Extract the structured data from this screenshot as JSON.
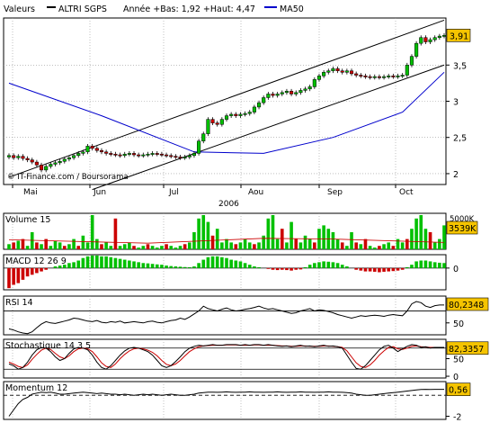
{
  "header": {
    "label": "Valeurs",
    "stock": "ALTRI SGPS",
    "range_text": "Année +Bas: 1,92 +Haut: 4,47",
    "ma_label": "MA50"
  },
  "watermark": "© IT-Finance.com / Boursorama",
  "colors": {
    "up": "#00c000",
    "down": "#cc0000",
    "ma": "#0000cc",
    "label_bg": "#f5c400",
    "stoch_signal": "#cc0000"
  },
  "chart_data": [
    {
      "id": "price",
      "type": "candlestick",
      "title": "",
      "year_label": "2006",
      "months": [
        "Mai",
        "Jun",
        "Jul",
        "Aou",
        "Sep",
        "Oct"
      ],
      "ylim": [
        1.85,
        4.15
      ],
      "yticks": [
        "2",
        "2,5",
        "3",
        "3,5"
      ],
      "last_label": "3,91",
      "close": [
        2.25,
        2.22,
        2.24,
        2.21,
        2.19,
        2.16,
        2.12,
        2.05,
        2.1,
        2.13,
        2.15,
        2.17,
        2.2,
        2.22,
        2.25,
        2.28,
        2.3,
        2.38,
        2.35,
        2.32,
        2.3,
        2.28,
        2.27,
        2.26,
        2.25,
        2.27,
        2.28,
        2.26,
        2.25,
        2.26,
        2.27,
        2.28,
        2.27,
        2.26,
        2.25,
        2.24,
        2.23,
        2.22,
        2.23,
        2.25,
        2.28,
        2.45,
        2.55,
        2.75,
        2.7,
        2.68,
        2.75,
        2.8,
        2.82,
        2.8,
        2.82,
        2.83,
        2.85,
        2.92,
        2.98,
        3.05,
        3.1,
        3.08,
        3.1,
        3.12,
        3.14,
        3.1,
        3.12,
        3.15,
        3.17,
        3.2,
        3.3,
        3.35,
        3.4,
        3.42,
        3.45,
        3.42,
        3.4,
        3.42,
        3.38,
        3.36,
        3.35,
        3.34,
        3.33,
        3.34,
        3.33,
        3.34,
        3.35,
        3.34,
        3.35,
        3.36,
        3.5,
        3.62,
        3.8,
        3.88,
        3.82,
        3.85,
        3.88,
        3.9,
        3.91
      ],
      "ma50": {
        "name": "MA50",
        "points": [
          [
            0,
            3.25
          ],
          [
            20,
            2.8
          ],
          [
            40,
            2.3
          ],
          [
            55,
            2.28
          ],
          [
            70,
            2.5
          ],
          [
            85,
            2.85
          ],
          [
            94,
            3.4
          ]
        ]
      },
      "channel_lines": [
        {
          "points": [
            [
              0,
              1.95
            ],
            [
              94,
              4.12
            ]
          ]
        },
        {
          "points": [
            [
              18,
              1.78
            ],
            [
              94,
              3.5
            ]
          ]
        }
      ]
    },
    {
      "id": "volume",
      "type": "bar",
      "title": "Volume 15",
      "axis_label": "5000K",
      "last_label": "3539K",
      "ma_points": [
        [
          0,
          0.28
        ],
        [
          30,
          0.18
        ],
        [
          55,
          0.32
        ],
        [
          70,
          0.3
        ],
        [
          94,
          0.2
        ]
      ],
      "values": [
        0.15,
        0.2,
        0.25,
        0.3,
        0.1,
        0.5,
        0.2,
        0.15,
        0.3,
        0.1,
        0.25,
        0.2,
        0.1,
        0.15,
        0.3,
        0.1,
        0.4,
        0.2,
        1,
        0.3,
        0.15,
        0.2,
        0.1,
        0.9,
        0.1,
        0.15,
        0.2,
        0.1,
        0.05,
        0.1,
        0.15,
        0.1,
        0.05,
        0.1,
        0.15,
        0.1,
        0.05,
        0.1,
        0.15,
        0.2,
        0.5,
        0.9,
        1,
        0.8,
        0.4,
        0.6,
        0.2,
        0.3,
        0.2,
        0.15,
        0.2,
        0.3,
        0.2,
        0.15,
        0.2,
        0.4,
        0.9,
        1,
        0.3,
        0.6,
        0.2,
        0.8,
        0.3,
        0.2,
        0.4,
        0.3,
        0.2,
        0.6,
        0.7,
        0.6,
        0.5,
        0.3,
        0.2,
        0.1,
        0.5,
        0.2,
        0.15,
        0.3,
        0.1,
        0.05,
        0.1,
        0.15,
        0.2,
        0.1,
        0.3,
        0.2,
        0.3,
        0.6,
        0.9,
        1,
        0.6,
        0.5,
        0.2,
        0.3,
        0.7
      ],
      "down_days": [
        1,
        3,
        6,
        8,
        12,
        15,
        20,
        23,
        27,
        30,
        34,
        38,
        44,
        49,
        53,
        59,
        62,
        66,
        72,
        75,
        77,
        80,
        83,
        86,
        91
      ]
    },
    {
      "id": "macd",
      "type": "bar",
      "title": "MACD 12 26 9",
      "ylim": [
        -0.13,
        0.08
      ],
      "yticks": [
        "0"
      ],
      "values": [
        -0.12,
        -0.1,
        -0.09,
        -0.07,
        -0.05,
        -0.04,
        -0.03,
        -0.02,
        -0.01,
        0,
        0.01,
        0.015,
        0.02,
        0.03,
        0.035,
        0.045,
        0.06,
        0.07,
        0.075,
        0.075,
        0.07,
        0.07,
        0.065,
        0.06,
        0.055,
        0.05,
        0.045,
        0.04,
        0.035,
        0.03,
        0.028,
        0.025,
        0.022,
        0.02,
        0.015,
        0.012,
        0.01,
        0.008,
        0.006,
        0.005,
        0.01,
        0.03,
        0.05,
        0.065,
        0.07,
        0.07,
        0.065,
        0.06,
        0.05,
        0.045,
        0.04,
        0.03,
        0.02,
        0.01,
        0.005,
        0,
        -0.005,
        -0.01,
        -0.012,
        -0.01,
        -0.012,
        -0.015,
        -0.01,
        -0.008,
        0.005,
        0.02,
        0.03,
        0.035,
        0.04,
        0.038,
        0.035,
        0.03,
        0.02,
        0.01,
        0,
        -0.01,
        -0.015,
        -0.02,
        -0.02,
        -0.022,
        -0.025,
        -0.022,
        -0.02,
        -0.018,
        -0.015,
        -0.01,
        0.005,
        0.02,
        0.04,
        0.045,
        0.045,
        0.04,
        0.035,
        0.032,
        0.03
      ]
    },
    {
      "id": "rsi",
      "type": "line",
      "title": "RSI 14",
      "ylim": [
        30,
        95
      ],
      "yticks": [
        "50"
      ],
      "reference_levels": [
        70,
        30
      ],
      "last_label": "80,2348",
      "values": [
        40,
        38,
        35,
        33,
        32,
        35,
        42,
        48,
        52,
        50,
        49,
        51,
        53,
        55,
        58,
        57,
        55,
        53,
        52,
        54,
        51,
        50,
        52,
        51,
        53,
        50,
        51,
        52,
        51,
        50,
        52,
        53,
        51,
        50,
        52,
        54,
        55,
        58,
        56,
        60,
        65,
        70,
        78,
        74,
        72,
        70,
        73,
        75,
        72,
        70,
        71,
        73,
        74,
        76,
        78,
        75,
        73,
        74,
        72,
        70,
        68,
        66,
        67,
        70,
        72,
        74,
        70,
        72,
        71,
        69,
        67,
        64,
        62,
        60,
        58,
        60,
        62,
        61,
        62,
        63,
        62,
        61,
        63,
        64,
        63,
        62,
        70,
        82,
        86,
        84,
        78,
        76,
        79,
        80,
        80
      ]
    },
    {
      "id": "stochastic",
      "type": "line",
      "title": "Stochastique 14 3 5",
      "ylim": [
        -5,
        105
      ],
      "yticks": [
        "50",
        "0"
      ],
      "reference_levels": [
        80,
        20
      ],
      "last_label": "82,3357",
      "k_values": [
        35,
        30,
        20,
        25,
        40,
        60,
        75,
        82,
        80,
        70,
        55,
        45,
        50,
        65,
        78,
        82,
        80,
        75,
        60,
        40,
        25,
        20,
        30,
        45,
        60,
        72,
        80,
        82,
        80,
        75,
        70,
        60,
        45,
        30,
        25,
        30,
        42,
        55,
        70,
        80,
        85,
        88,
        86,
        88,
        90,
        88,
        88,
        90,
        90,
        90,
        88,
        90,
        88,
        90,
        90,
        88,
        90,
        88,
        86,
        85,
        86,
        84,
        86,
        88,
        85,
        86,
        84,
        86,
        88,
        85,
        86,
        84,
        80,
        60,
        40,
        22,
        20,
        30,
        45,
        60,
        75,
        85,
        88,
        80,
        70,
        78,
        85,
        90,
        88,
        82,
        84,
        80,
        82,
        82,
        82
      ],
      "d_values": [
        40,
        35,
        28,
        25,
        32,
        48,
        62,
        74,
        80,
        76,
        65,
        55,
        50,
        58,
        70,
        78,
        80,
        78,
        70,
        55,
        38,
        28,
        25,
        35,
        50,
        62,
        72,
        78,
        80,
        78,
        74,
        68,
        58,
        45,
        34,
        30,
        35,
        45,
        58,
        70,
        78,
        84,
        86,
        87,
        88,
        88,
        88,
        89,
        89,
        89,
        88,
        88,
        88,
        89,
        89,
        88,
        88,
        88,
        87,
        86,
        86,
        85,
        85,
        86,
        86,
        85,
        85,
        85,
        86,
        86,
        85,
        84,
        82,
        72,
        55,
        38,
        28,
        25,
        32,
        45,
        60,
        72,
        82,
        84,
        78,
        76,
        80,
        85,
        86,
        84,
        83,
        82,
        82,
        82,
        82
      ]
    },
    {
      "id": "momentum",
      "type": "line",
      "title": "Momentum 12",
      "ylim": [
        -2.3,
        1.3
      ],
      "yticks": [
        "0",
        "-2"
      ],
      "last_label": "0,56",
      "values": [
        -2,
        -1.4,
        -0.8,
        -0.4,
        -0.2,
        0.1,
        0.2,
        0.3,
        0.25,
        0.3,
        0.2,
        0.1,
        0.1,
        0.15,
        0.2,
        0.25,
        0.3,
        0.25,
        0.2,
        0.15,
        0.2,
        0.15,
        0.1,
        0.1,
        0.05,
        0.1,
        0.05,
        0,
        0.05,
        0.1,
        0.05,
        0.1,
        0.05,
        0,
        0.05,
        0.1,
        0.05,
        0,
        0,
        0.05,
        0.1,
        0.2,
        0.25,
        0.3,
        0.3,
        0.28,
        0.3,
        0.32,
        0.3,
        0.28,
        0.3,
        0.3,
        0.32,
        0.3,
        0.3,
        0.28,
        0.3,
        0.3,
        0.32,
        0.3,
        0.28,
        0.3,
        0.3,
        0.32,
        0.3,
        0.3,
        0.28,
        0.3,
        0.3,
        0.32,
        0.3,
        0.3,
        0.28,
        0.25,
        0.2,
        0.1,
        0.05,
        0,
        0,
        0.05,
        0.1,
        0.15,
        0.2,
        0.25,
        0.3,
        0.35,
        0.4,
        0.45,
        0.5,
        0.55,
        0.56,
        0.55,
        0.56,
        0.56,
        0.56
      ]
    }
  ]
}
